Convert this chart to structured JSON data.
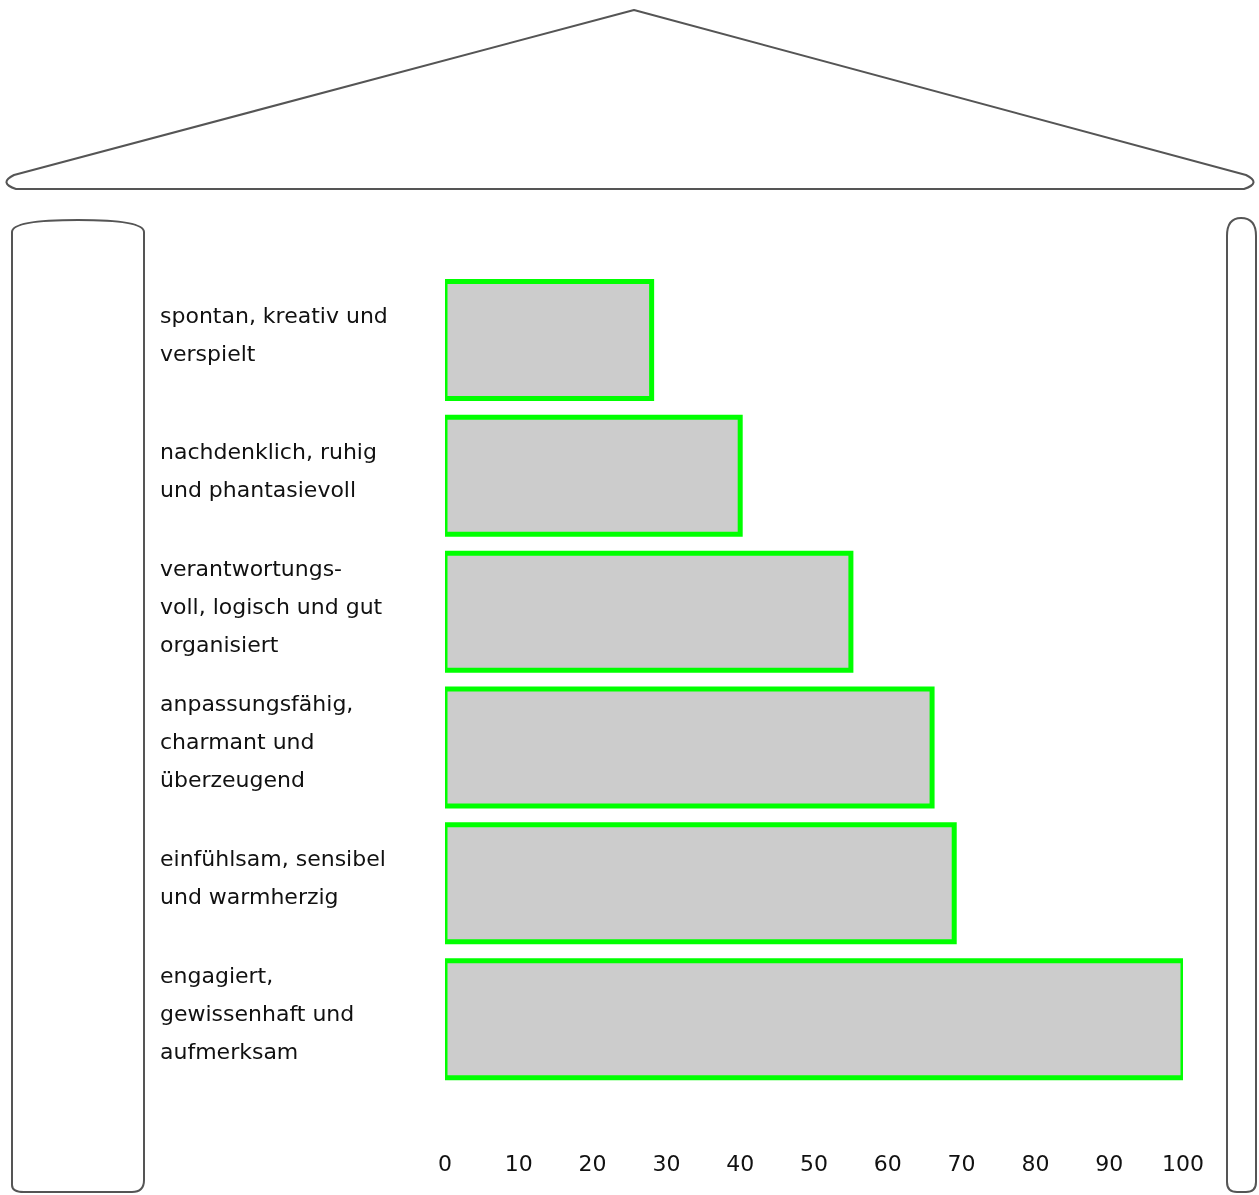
{
  "chart_data": {
    "type": "bar",
    "orientation": "horizontal",
    "categories": [
      "spontan, kreativ und\nverspielt",
      "nachdenklich, ruhig\nund phantasievoll",
      "verantwortungs-\nvoll, logisch und gut\norganisiert",
      "anpassungsfähig,\ncharmant und\nüberzeugend",
      "einfühlsam, sensibel\nund warmherzig",
      "engagiert,\ngewissenhaft und\naufmerksam"
    ],
    "values": [
      28,
      40,
      55,
      66,
      69,
      100
    ],
    "color": "#cccccc",
    "xlim": [
      0,
      100
    ],
    "xticks": [
      0,
      10,
      20,
      30,
      40,
      50,
      60,
      70,
      80,
      90,
      100
    ],
    "grid": false,
    "legend": false
  }
}
